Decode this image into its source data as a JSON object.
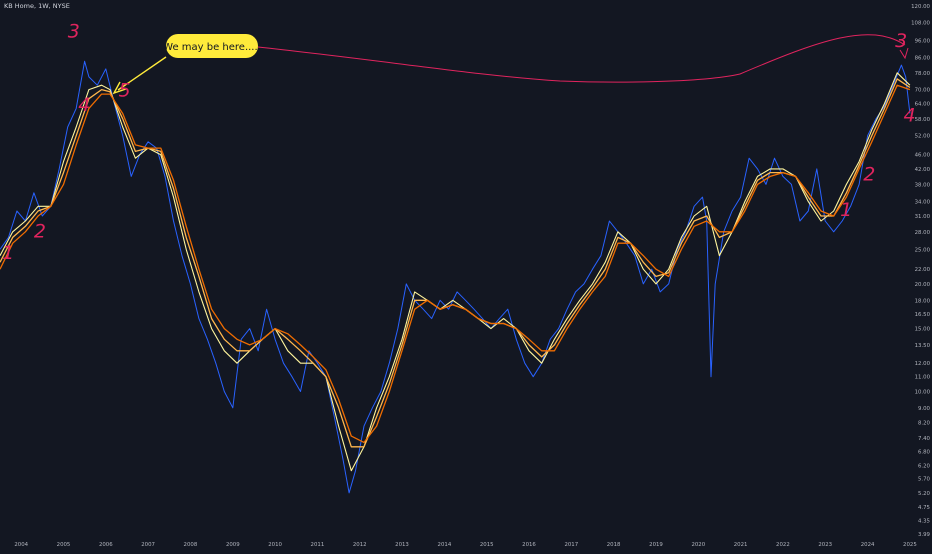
{
  "header": {
    "symbol_title": "KB Home, 1W, NYSE"
  },
  "chart_data": {
    "type": "line",
    "title": "KB Home, 1W, NYSE",
    "xlabel": "",
    "ylabel": "",
    "y_scale": "log",
    "ylim": [
      3.7,
      125
    ],
    "x_range": [
      2003.5,
      2025.05
    ],
    "x_ticks": [
      "2004",
      "2005",
      "2006",
      "2007",
      "2008",
      "2009",
      "2010",
      "2011",
      "2012",
      "2013",
      "2014",
      "2015",
      "2016",
      "2017",
      "2018",
      "2019",
      "2020",
      "2021",
      "2022",
      "2023",
      "2024",
      "2025"
    ],
    "y_ticks": [
      "120.00",
      "108.00",
      "96.00",
      "86.00",
      "78.00",
      "70.00",
      "64.00",
      "58.00",
      "52.00",
      "46.00",
      "42.00",
      "38.00",
      "34.00",
      "31.00",
      "28.00",
      "25.00",
      "22.00",
      "20.00",
      "18.00",
      "16.50",
      "15.00",
      "13.50",
      "12.00",
      "11.00",
      "10.00",
      "9.00",
      "8.20",
      "7.40",
      "6.80",
      "6.20",
      "5.70",
      "5.20",
      "4.75",
      "4.35",
      "3.99"
    ],
    "grid": false,
    "colors": {
      "background": "#131722",
      "price": "#2962ff",
      "ma_fast": "#fff59d",
      "ma_mid": "#ffb74d",
      "ma_slow": "#ef6c00",
      "annotation": "#e0245e",
      "callout": "#ffeb3b"
    },
    "series": [
      {
        "key": "price",
        "x": [
          2003.5,
          2003.7,
          2003.9,
          2004.1,
          2004.3,
          2004.5,
          2004.7,
          2004.9,
          2005.1,
          2005.3,
          2005.5,
          2005.6,
          2005.8,
          2006.0,
          2006.2,
          2006.4,
          2006.6,
          2006.8,
          2007.0,
          2007.2,
          2007.4,
          2007.6,
          2007.8,
          2008.0,
          2008.2,
          2008.4,
          2008.6,
          2008.8,
          2009.0,
          2009.2,
          2009.4,
          2009.6,
          2009.8,
          2010.0,
          2010.2,
          2010.4,
          2010.6,
          2010.8,
          2011.0,
          2011.2,
          2011.4,
          2011.6,
          2011.75,
          2011.9,
          2012.1,
          2012.3,
          2012.5,
          2012.7,
          2012.9,
          2013.1,
          2013.3,
          2013.5,
          2013.7,
          2013.9,
          2014.1,
          2014.3,
          2014.5,
          2014.7,
          2014.9,
          2015.1,
          2015.3,
          2015.5,
          2015.7,
          2015.9,
          2016.1,
          2016.3,
          2016.5,
          2016.7,
          2016.9,
          2017.1,
          2017.3,
          2017.5,
          2017.7,
          2017.9,
          2018.1,
          2018.3,
          2018.5,
          2018.7,
          2018.9,
          2019.1,
          2019.3,
          2019.5,
          2019.7,
          2019.9,
          2020.1,
          2020.2,
          2020.3,
          2020.4,
          2020.6,
          2020.8,
          2021.0,
          2021.2,
          2021.4,
          2021.6,
          2021.8,
          2022.0,
          2022.2,
          2022.4,
          2022.6,
          2022.8,
          2023.0,
          2023.2,
          2023.4,
          2023.6,
          2023.8,
          2024.0,
          2024.2,
          2024.4,
          2024.6,
          2024.8,
          2024.9,
          2025.0
        ],
        "y": [
          25,
          27,
          32,
          30,
          36,
          31,
          33,
          42,
          55,
          62,
          84,
          76,
          72,
          80,
          64,
          52,
          40,
          46,
          50,
          48,
          40,
          30,
          24,
          20,
          16,
          14,
          12,
          10,
          9,
          14,
          15,
          13,
          17,
          14,
          12,
          11,
          10,
          13,
          12,
          11,
          8.5,
          6.5,
          5.2,
          6,
          8,
          9,
          10,
          12,
          15,
          20,
          18,
          17,
          16,
          18,
          17,
          19,
          18,
          17,
          16,
          15,
          16,
          17,
          14,
          12,
          11,
          12,
          14,
          15,
          17,
          19,
          20,
          22,
          24,
          30,
          28,
          26,
          24,
          20,
          22,
          19,
          20,
          25,
          28,
          33,
          35,
          30,
          11,
          20,
          28,
          32,
          35,
          45,
          42,
          38,
          45,
          40,
          38,
          30,
          32,
          42,
          30,
          28,
          30,
          33,
          38,
          52,
          58,
          63,
          72,
          82,
          76,
          60
        ]
      },
      {
        "key": "ma_fast",
        "x": [
          2003.5,
          2003.8,
          2004.1,
          2004.4,
          2004.7,
          2005.0,
          2005.3,
          2005.6,
          2005.9,
          2006.1,
          2006.4,
          2006.7,
          2007.0,
          2007.3,
          2007.6,
          2007.9,
          2008.2,
          2008.5,
          2008.8,
          2009.1,
          2009.4,
          2009.7,
          2010.0,
          2010.3,
          2010.6,
          2010.9,
          2011.2,
          2011.5,
          2011.8,
          2012.1,
          2012.4,
          2012.7,
          2013.0,
          2013.3,
          2013.6,
          2013.9,
          2014.2,
          2014.5,
          2014.8,
          2015.1,
          2015.4,
          2015.7,
          2016.0,
          2016.3,
          2016.6,
          2016.9,
          2017.2,
          2017.5,
          2017.8,
          2018.1,
          2018.4,
          2018.7,
          2019.0,
          2019.3,
          2019.6,
          2019.9,
          2020.2,
          2020.5,
          2020.8,
          2021.1,
          2021.4,
          2021.7,
          2022.0,
          2022.3,
          2022.6,
          2022.9,
          2023.2,
          2023.5,
          2023.8,
          2024.1,
          2024.4,
          2024.7,
          2025.0
        ],
        "y": [
          24,
          28,
          30,
          33,
          33,
          44,
          55,
          70,
          72,
          70,
          55,
          45,
          48,
          46,
          35,
          25,
          19,
          15,
          13,
          12,
          13,
          14,
          15,
          13,
          12,
          12,
          11,
          8,
          6,
          7,
          9,
          11,
          14,
          19,
          18,
          17,
          18,
          17,
          16,
          15,
          16,
          15,
          13,
          12,
          14,
          16,
          18,
          20,
          23,
          28,
          26,
          22,
          20,
          22,
          27,
          31,
          33,
          24,
          28,
          34,
          40,
          42,
          42,
          40,
          34,
          30,
          32,
          38,
          44,
          54,
          64,
          78,
          72
        ]
      },
      {
        "key": "ma_mid",
        "x": [
          2003.5,
          2003.8,
          2004.1,
          2004.4,
          2004.7,
          2005.0,
          2005.3,
          2005.6,
          2005.9,
          2006.1,
          2006.4,
          2006.7,
          2007.0,
          2007.3,
          2007.6,
          2007.9,
          2008.2,
          2008.5,
          2008.8,
          2009.1,
          2009.4,
          2009.7,
          2010.0,
          2010.3,
          2010.6,
          2010.9,
          2011.2,
          2011.5,
          2011.8,
          2012.1,
          2012.4,
          2012.7,
          2013.0,
          2013.3,
          2013.6,
          2013.9,
          2014.2,
          2014.5,
          2014.8,
          2015.1,
          2015.4,
          2015.7,
          2016.0,
          2016.3,
          2016.6,
          2016.9,
          2017.2,
          2017.5,
          2017.8,
          2018.1,
          2018.4,
          2018.7,
          2019.0,
          2019.3,
          2019.6,
          2019.9,
          2020.2,
          2020.5,
          2020.8,
          2021.1,
          2021.4,
          2021.7,
          2022.0,
          2022.3,
          2022.6,
          2022.9,
          2023.2,
          2023.5,
          2023.8,
          2024.1,
          2024.4,
          2024.7,
          2025.0
        ],
        "y": [
          23,
          27,
          29,
          32,
          33,
          41,
          52,
          66,
          70,
          69,
          58,
          47,
          48,
          47,
          37,
          27,
          21,
          16,
          14,
          13,
          13,
          14,
          15,
          14,
          13,
          12,
          11,
          9,
          7,
          7,
          8.5,
          10.5,
          13.5,
          18,
          18,
          17,
          17.5,
          17,
          16,
          15.5,
          15.5,
          15,
          13.5,
          12.5,
          13.5,
          15.5,
          17.5,
          19.5,
          22,
          27,
          26,
          23,
          21,
          21.5,
          26,
          30,
          31,
          27,
          28,
          33,
          39,
          41,
          41,
          40,
          35,
          31,
          31,
          36,
          43,
          52,
          62,
          75,
          71
        ]
      },
      {
        "key": "ma_slow",
        "x": [
          2003.5,
          2003.8,
          2004.1,
          2004.4,
          2004.7,
          2005.0,
          2005.3,
          2005.6,
          2005.9,
          2006.1,
          2006.4,
          2006.7,
          2007.0,
          2007.3,
          2007.6,
          2007.9,
          2008.2,
          2008.5,
          2008.8,
          2009.1,
          2009.4,
          2009.7,
          2010.0,
          2010.3,
          2010.6,
          2010.9,
          2011.2,
          2011.5,
          2011.8,
          2012.1,
          2012.4,
          2012.7,
          2013.0,
          2013.3,
          2013.6,
          2013.9,
          2014.2,
          2014.5,
          2014.8,
          2015.1,
          2015.4,
          2015.7,
          2016.0,
          2016.3,
          2016.6,
          2016.9,
          2017.2,
          2017.5,
          2017.8,
          2018.1,
          2018.4,
          2018.7,
          2019.0,
          2019.3,
          2019.6,
          2019.9,
          2020.2,
          2020.5,
          2020.8,
          2021.1,
          2021.4,
          2021.7,
          2022.0,
          2022.3,
          2022.6,
          2022.9,
          2023.2,
          2023.5,
          2023.8,
          2024.1,
          2024.4,
          2024.7,
          2025.0
        ],
        "y": [
          22,
          26,
          28,
          31,
          33,
          38,
          49,
          62,
          68,
          68,
          60,
          49,
          48,
          48,
          39,
          29,
          22,
          17,
          15,
          14,
          13.5,
          14,
          15,
          14.5,
          13.5,
          12.5,
          11.5,
          9.5,
          7.5,
          7.2,
          8,
          10,
          13,
          17,
          18,
          17,
          17.5,
          17,
          16,
          15.5,
          15.5,
          15,
          14,
          13,
          13,
          15,
          17,
          19,
          21,
          26,
          26,
          24,
          22,
          21,
          25,
          29,
          30,
          28,
          28,
          32,
          38,
          40,
          41,
          40,
          36,
          32,
          31,
          35,
          42,
          50,
          60,
          72,
          70
        ]
      }
    ],
    "annotations": {
      "callout_text": "We may be here.....",
      "wave_labels": [
        {
          "text": "1",
          "x": 2003.55,
          "y": 23.5
        },
        {
          "text": "2",
          "x": 2004.3,
          "y": 27
        },
        {
          "text": "3",
          "x": 2005.1,
          "y": 98
        },
        {
          "text": "4",
          "x": 2005.35,
          "y": 61
        },
        {
          "text": "5",
          "x": 2006.3,
          "y": 67
        },
        {
          "text": "1",
          "x": 2023.35,
          "y": 31
        },
        {
          "text": "2",
          "x": 2023.9,
          "y": 39
        },
        {
          "text": "3",
          "x": 2024.65,
          "y": 92
        },
        {
          "text": "4",
          "x": 2024.85,
          "y": 57
        }
      ]
    }
  }
}
